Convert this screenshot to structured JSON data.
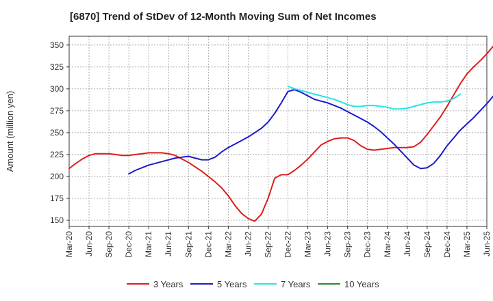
{
  "chart_data": {
    "type": "line",
    "title": "[6870]  Trend of StDev of 12-Month Moving Sum of Net Incomes",
    "ylabel": "Amount (million yen)",
    "xlabel": "",
    "ylim": [
      143,
      360
    ],
    "yticks": [
      150,
      175,
      200,
      225,
      250,
      275,
      300,
      325,
      350
    ],
    "xticks": [
      "Mar-20",
      "Jun-20",
      "Sep-20",
      "Dec-20",
      "Mar-21",
      "Jun-21",
      "Sep-21",
      "Dec-21",
      "Mar-22",
      "Jun-22",
      "Sep-22",
      "Dec-22",
      "Mar-23",
      "Jun-23",
      "Sep-23",
      "Dec-23",
      "Mar-24",
      "Jun-24",
      "Sep-24",
      "Dec-24",
      "Mar-25",
      "Jun-25"
    ],
    "grid": true,
    "legend_position": "bottom",
    "series": [
      {
        "name": "3 Years",
        "color": "#dd1c1c",
        "start_index": 0,
        "values": [
          209,
          215,
          220,
          224,
          226,
          226,
          226,
          225,
          224,
          224,
          225,
          226,
          227,
          227,
          227,
          226,
          224,
          220,
          216,
          211,
          206,
          200,
          194,
          187,
          178,
          167,
          158,
          152,
          149,
          157,
          175,
          198,
          202,
          202,
          207,
          213,
          220,
          228,
          236,
          240,
          243,
          244,
          244,
          241,
          235,
          231,
          230,
          231,
          232,
          233,
          233,
          233,
          234,
          239,
          248,
          258,
          268,
          280,
          293,
          306,
          317,
          325,
          332,
          340,
          349,
          354
        ]
      },
      {
        "name": "5 Years",
        "color": "#1a1acc",
        "start_index": 9,
        "values": [
          203,
          207,
          210,
          213,
          215,
          217,
          219,
          221,
          222,
          223,
          221,
          219,
          219,
          222,
          228,
          233,
          237,
          241,
          245,
          250,
          255,
          262,
          272,
          284,
          297,
          299,
          296,
          292,
          288,
          286,
          284,
          281,
          278,
          274,
          270,
          266,
          262,
          257,
          251,
          244,
          237,
          229,
          221,
          213,
          209,
          210,
          215,
          224,
          235,
          244,
          253,
          260,
          267,
          275,
          283,
          292
        ]
      },
      {
        "name": "7 Years",
        "color": "#22e4e4",
        "start_index": 33,
        "values": [
          303,
          300,
          298,
          296,
          294,
          292,
          290,
          288,
          285,
          282,
          280,
          280,
          281,
          281,
          280,
          279,
          277,
          277,
          278,
          280,
          282,
          284,
          285,
          285,
          286,
          289,
          294
        ]
      },
      {
        "name": "10 Years",
        "color": "#2a8a2a",
        "start_index": 0,
        "values": []
      }
    ]
  }
}
